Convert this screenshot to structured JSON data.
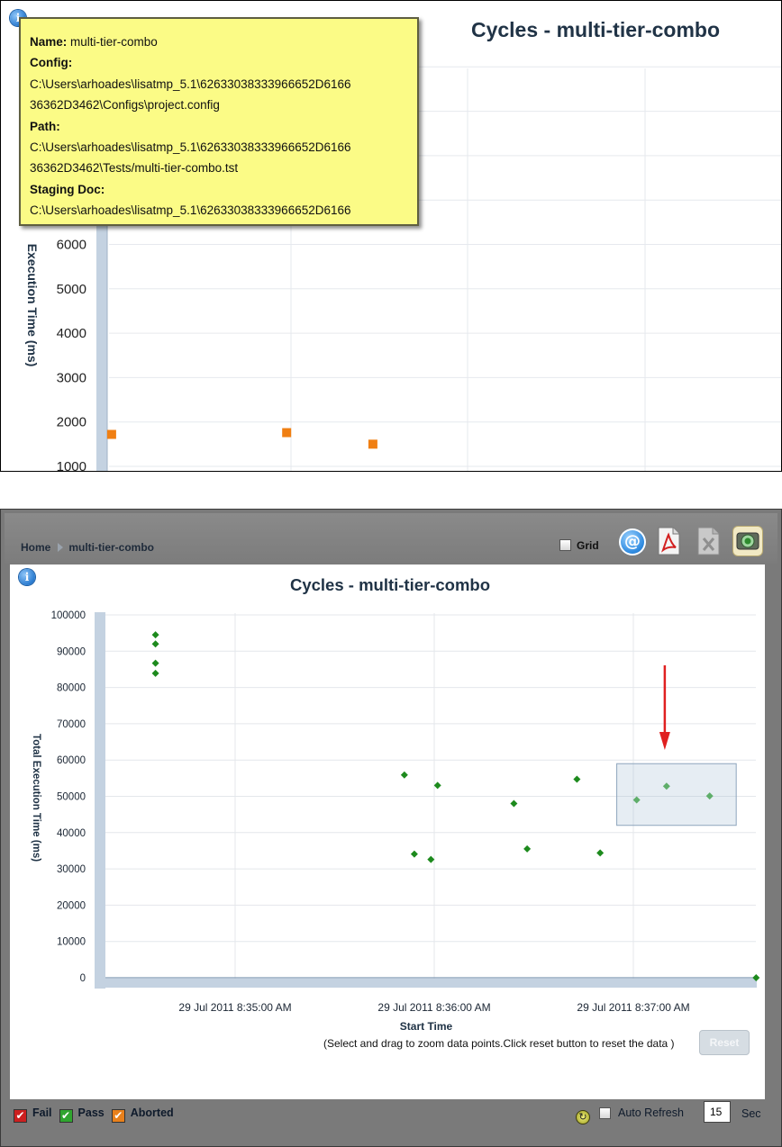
{
  "top_panel": {
    "chart_data": {
      "type": "scatter",
      "title": "Cycles - multi-tier-combo",
      "ylabel": "Execution Time (ms)",
      "ylim": [
        800,
        10500
      ],
      "y_ticks": [
        "6000",
        "5000",
        "4000",
        "3000",
        "2000",
        "1000"
      ],
      "marker": "square",
      "series": [
        {
          "color": "#f07f12",
          "points": [
            {
              "x": 0.005,
              "y": 1720
            },
            {
              "x": 0.34,
              "y": 1760
            },
            {
              "x": 0.505,
              "y": 1500
            }
          ]
        }
      ]
    },
    "tooltip": {
      "name_label": "Name:",
      "name_value": "multi-tier-combo",
      "config_label": "Config:",
      "config_line1": "C:\\Users\\arhoades\\lisatmp_5.1\\62633038333966652D6166",
      "config_line2": "36362D3462\\Configs\\project.config",
      "path_label": "Path:",
      "path_line1": "C:\\Users\\arhoades\\lisatmp_5.1\\62633038333966652D6166",
      "path_line2": "36362D3462\\Tests/multi-tier-combo.tst",
      "staging_label": "Staging Doc:",
      "staging_line1": "C:\\Users\\arhoades\\lisatmp_5.1\\62633038333966652D6166"
    }
  },
  "bottom_panel": {
    "breadcrumb": {
      "home": "Home",
      "current": "multi-tier-combo"
    },
    "grid_label": "Grid",
    "email_glyph": "@",
    "icons": [
      "info-icon",
      "email-icon",
      "pdf-export-icon",
      "excel-export-icon",
      "snapshot-icon",
      "refresh-icon"
    ],
    "chart_data": {
      "type": "scatter",
      "title": "Cycles - multi-tier-combo",
      "xlabel": "Start Time",
      "ylabel": "Total Execution Time (ms)",
      "ylim": [
        0,
        100000
      ],
      "y_ticks": [
        "100000",
        "90000",
        "80000",
        "70000",
        "60000",
        "50000",
        "40000",
        "30000",
        "20000",
        "10000",
        "0"
      ],
      "x_ticks": [
        "29 Jul 2011 8:35:00 AM",
        "29 Jul 2011 8:36:00 AM",
        "29 Jul 2011 8:37:00 AM"
      ],
      "grid": true,
      "marker": "diamond",
      "series": [
        {
          "color": "#1d8a1d",
          "points": [
            {
              "x": "29 Jul 2011 8:34:36 AM",
              "y": 94500
            },
            {
              "x": "29 Jul 2011 8:34:36 AM",
              "y": 92000
            },
            {
              "x": "29 Jul 2011 8:34:36 AM",
              "y": 86700
            },
            {
              "x": "29 Jul 2011 8:34:36 AM",
              "y": 83900
            },
            {
              "x": "29 Jul 2011 8:35:51 AM",
              "y": 55900
            },
            {
              "x": "29 Jul 2011 8:35:54 AM",
              "y": 34100
            },
            {
              "x": "29 Jul 2011 8:35:59 AM",
              "y": 32600
            },
            {
              "x": "29 Jul 2011 8:36:01 AM",
              "y": 53000
            },
            {
              "x": "29 Jul 2011 8:36:24 AM",
              "y": 48000
            },
            {
              "x": "29 Jul 2011 8:36:28 AM",
              "y": 35500
            },
            {
              "x": "29 Jul 2011 8:36:43 AM",
              "y": 54700
            },
            {
              "x": "29 Jul 2011 8:36:50 AM",
              "y": 34400
            },
            {
              "x": "29 Jul 2011 8:37:01 AM",
              "y": 49000
            },
            {
              "x": "29 Jul 2011 8:37:10 AM",
              "y": 52800
            },
            {
              "x": "29 Jul 2011 8:37:23 AM",
              "y": 50100
            },
            {
              "x": "29 Jul 2011 8:37:37 AM",
              "y": 0
            }
          ]
        }
      ],
      "selection": {
        "x_from": "29 Jul 2011 8:36:55 AM",
        "x_to": "29 Jul 2011 8:37:31 AM",
        "y_from": 42000,
        "y_to": 59000
      },
      "arrow_color": "#e02020"
    },
    "zoom_hint": "(Select and drag to zoom data points.Click reset button to reset the data )",
    "reset_label": "Reset",
    "legend": [
      {
        "label": "Fail",
        "color": "#cc1f1f"
      },
      {
        "label": "Pass",
        "color": "#2fa52f"
      },
      {
        "label": "Aborted",
        "color": "#e8801c"
      }
    ],
    "legend_check": "✔",
    "auto_refresh_label": "Auto Refresh",
    "refresh_interval": "15",
    "sec_label": "Sec"
  }
}
